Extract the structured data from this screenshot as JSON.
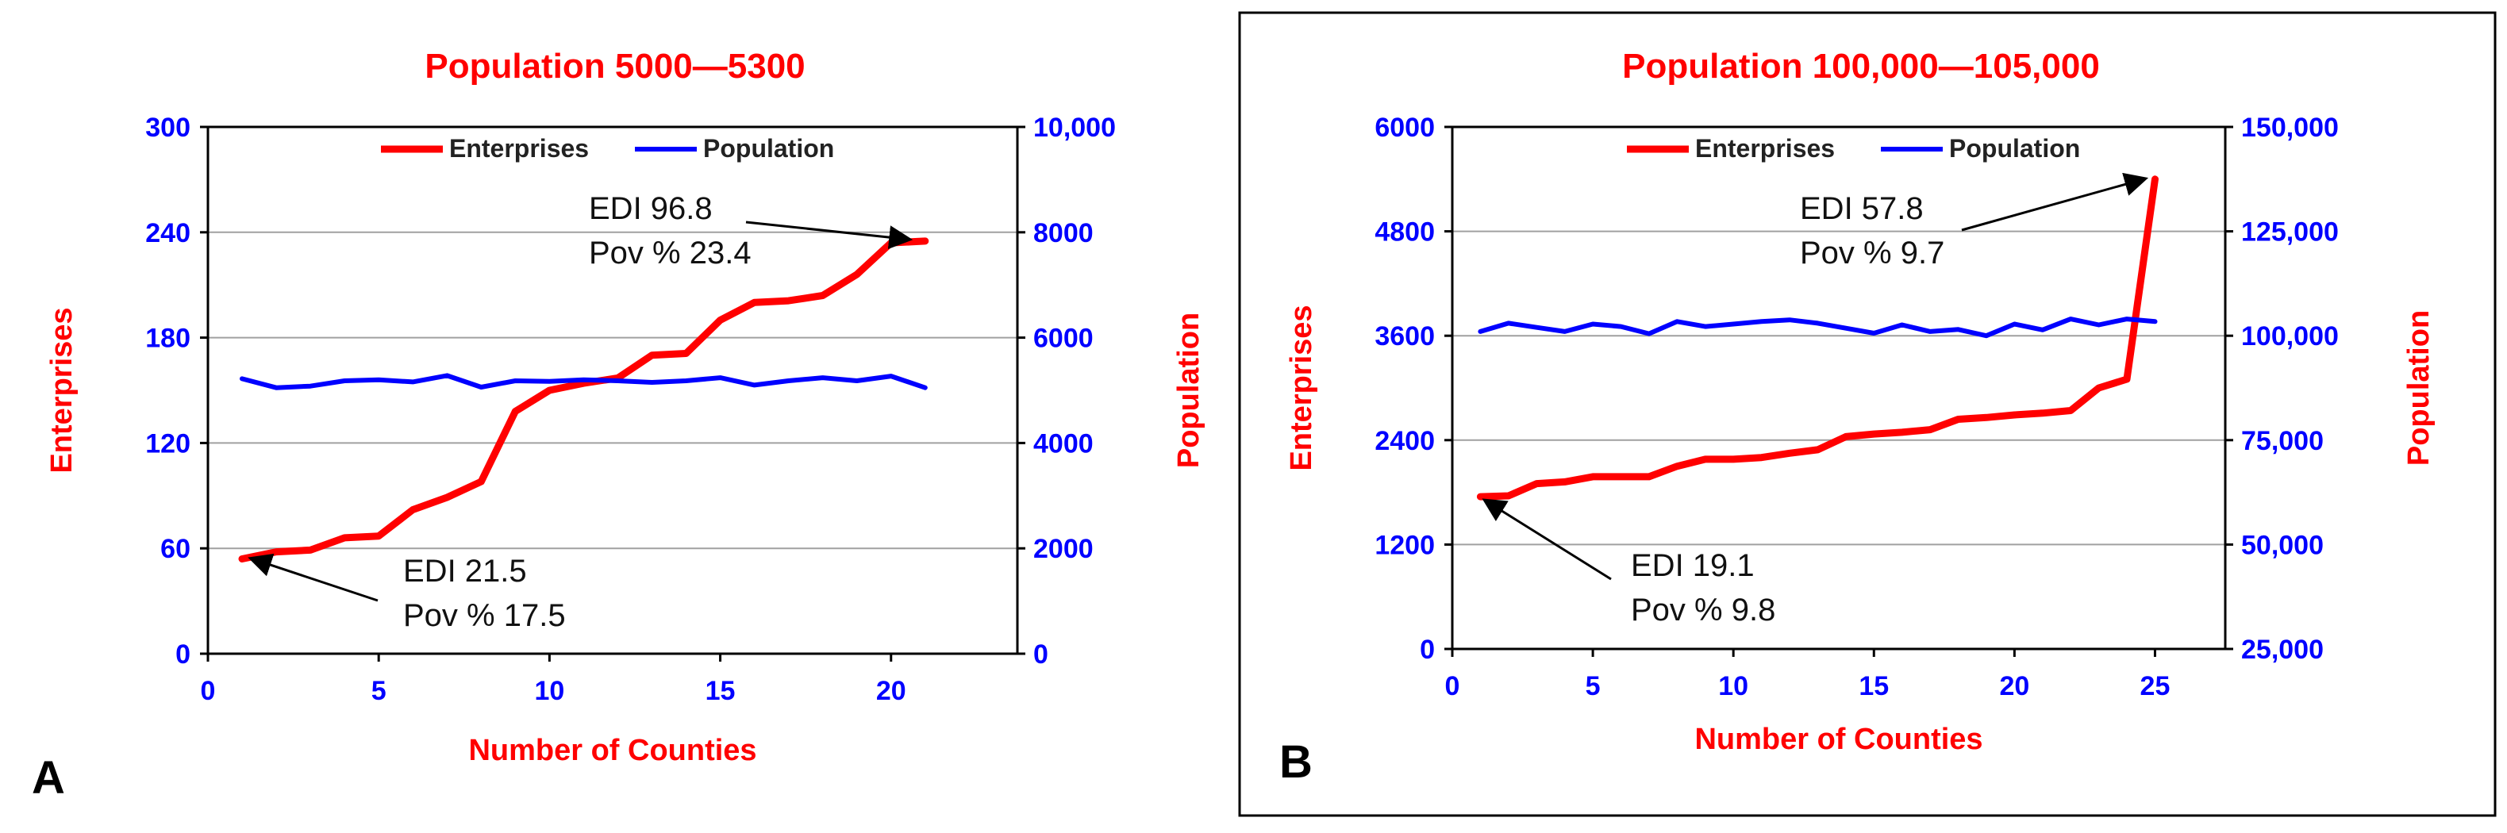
{
  "chart_data": [
    {
      "type": "line",
      "panel_label": "A",
      "title": "Population 5000—5300",
      "xlabel": "Number of Counties",
      "ylabel_left": "Enterprises",
      "ylabel_right": "Population",
      "xlim": [
        0,
        23.7
      ],
      "xticks": [
        0,
        5,
        10,
        15,
        20
      ],
      "xtick_labels": [
        "0",
        "5",
        "10",
        "15",
        "20"
      ],
      "ylim_left": [
        0,
        300
      ],
      "yticks_left": [
        0,
        60,
        120,
        180,
        240,
        300
      ],
      "ytick_labels_left": [
        "0",
        "60",
        "120",
        "180",
        "240",
        "300"
      ],
      "ylim_right": [
        0,
        10000
      ],
      "yticks_right": [
        0,
        2000,
        4000,
        6000,
        8000,
        10000
      ],
      "ytick_labels_right": [
        "0",
        "2000",
        "4000",
        "6000",
        "8000",
        "10,000"
      ],
      "grid": true,
      "legend_position": "top-center",
      "series": [
        {
          "name": "Enterprises",
          "axis": "left",
          "color": "#ff0000",
          "x": [
            1,
            2,
            3,
            4,
            5,
            6,
            7,
            8,
            9,
            10,
            11,
            12,
            13,
            14,
            15,
            16,
            17,
            18,
            19,
            20,
            21
          ],
          "values": [
            54,
            58,
            59,
            66,
            67,
            82,
            89,
            98,
            138,
            150,
            154,
            157,
            170,
            171,
            190,
            200,
            201,
            204,
            216,
            234,
            235
          ]
        },
        {
          "name": "Population",
          "axis": "right",
          "color": "#0000ff",
          "x": [
            1,
            2,
            3,
            4,
            5,
            6,
            7,
            8,
            9,
            10,
            11,
            12,
            13,
            14,
            15,
            16,
            17,
            18,
            19,
            20,
            21
          ],
          "values": [
            5220,
            5050,
            5080,
            5180,
            5200,
            5160,
            5280,
            5060,
            5180,
            5170,
            5200,
            5180,
            5150,
            5180,
            5240,
            5100,
            5180,
            5240,
            5180,
            5270,
            5050
          ]
        }
      ],
      "annotations": [
        {
          "lines": [
            "EDI 96.8",
            "Pov % 23.4"
          ],
          "points_to": {
            "x": 20.5,
            "y": 236
          }
        },
        {
          "lines": [
            "EDI 21.5",
            "Pov % 17.5"
          ],
          "points_to": {
            "x": 1.3,
            "y": 54
          }
        }
      ]
    },
    {
      "type": "line",
      "panel_label": "B",
      "title": "Population 100,000—105,000",
      "xlabel": "Number of Counties",
      "ylabel_left": "Enterprises",
      "ylabel_right": "Population",
      "xlim": [
        0,
        27.5
      ],
      "xticks": [
        0,
        5,
        10,
        15,
        20,
        25
      ],
      "xtick_labels": [
        "0",
        "5",
        "10",
        "15",
        "20",
        "25"
      ],
      "ylim_left": [
        0,
        6000
      ],
      "yticks_left": [
        0,
        1200,
        2400,
        3600,
        4800,
        6000
      ],
      "ytick_labels_left": [
        "0",
        "1200",
        "2400",
        "3600",
        "4800",
        "6000"
      ],
      "ylim_right": [
        25000,
        150000
      ],
      "yticks_right": [
        25000,
        50000,
        75000,
        100000,
        125000,
        150000
      ],
      "ytick_labels_right": [
        "25,000",
        "50,000",
        "75,000",
        "100,000",
        "125,000",
        "150,000"
      ],
      "grid": true,
      "legend_position": "top-center",
      "series": [
        {
          "name": "Enterprises",
          "axis": "left",
          "color": "#ff0000",
          "x": [
            1,
            2,
            3,
            4,
            5,
            6,
            7,
            8,
            9,
            10,
            11,
            12,
            13,
            14,
            15,
            16,
            17,
            18,
            19,
            20,
            21,
            22,
            23,
            24,
            25
          ],
          "values": [
            1750,
            1760,
            1900,
            1920,
            1980,
            1980,
            1980,
            2100,
            2180,
            2180,
            2200,
            2250,
            2290,
            2440,
            2470,
            2490,
            2520,
            2640,
            2660,
            2690,
            2710,
            2740,
            3000,
            3100,
            5400
          ]
        },
        {
          "name": "Population",
          "axis": "right",
          "color": "#0000ff",
          "x": [
            1,
            2,
            3,
            4,
            5,
            6,
            7,
            8,
            9,
            10,
            11,
            12,
            13,
            14,
            15,
            16,
            17,
            18,
            19,
            20,
            21,
            22,
            23,
            24,
            25
          ],
          "values": [
            101000,
            103000,
            102000,
            101000,
            102800,
            102200,
            100500,
            103400,
            102200,
            102800,
            103400,
            103800,
            103000,
            101800,
            100600,
            102600,
            101000,
            101500,
            100000,
            102800,
            101400,
            104000,
            102600,
            104000,
            103400
          ]
        }
      ],
      "annotations": [
        {
          "lines": [
            "EDI 57.8",
            "Pov % 9.7"
          ],
          "points_to": {
            "x": 24.6,
            "y": 5400
          }
        },
        {
          "lines": [
            "EDI 19.1",
            "Pov % 9.8"
          ],
          "points_to": {
            "x": 1.2,
            "y": 1700
          }
        }
      ]
    }
  ]
}
